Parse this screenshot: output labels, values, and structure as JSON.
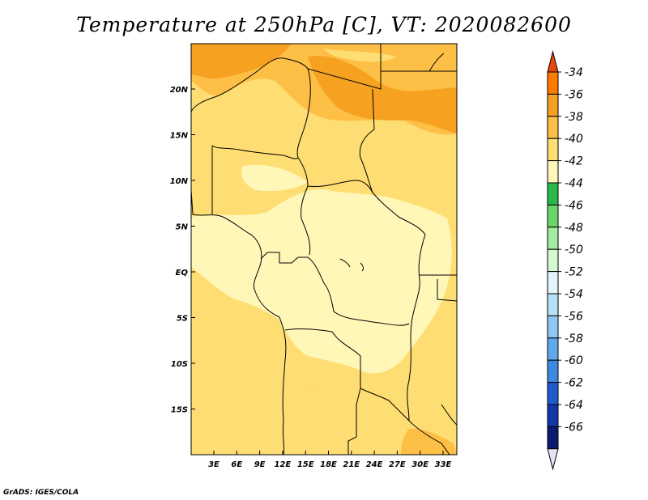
{
  "title": "Temperature at 250hPa [C], VT: 2020082600",
  "credit": "GrADS: IGES/COLA",
  "map": {
    "lon_ticks": [
      "3E",
      "6E",
      "9E",
      "12E",
      "15E",
      "18E",
      "21E",
      "24E",
      "27E",
      "30E",
      "33E"
    ],
    "lat_ticks": [
      "20N",
      "15N",
      "10N",
      "5N",
      "EQ",
      "5S",
      "10S",
      "15S"
    ]
  },
  "colorbar": {
    "levels": [
      "-34",
      "-36",
      "-38",
      "-40",
      "-42",
      "-44",
      "-46",
      "-48",
      "-50",
      "-52",
      "-54",
      "-56",
      "-58",
      "-60",
      "-62",
      "-64",
      "-66"
    ],
    "colors": [
      "#e8450c",
      "#ff7a00",
      "#f7a120",
      "#fdbf45",
      "#fedd72",
      "#fff7b8",
      "#2ab84a",
      "#6ad66a",
      "#a4eca0",
      "#d6f8d0",
      "#e3f4fb",
      "#b5e0f7",
      "#8ec8f2",
      "#5fa8ec",
      "#3c8ae0",
      "#1e5ccc",
      "#1437a8",
      "#0a1a6e",
      "#e4e4f6"
    ]
  }
}
